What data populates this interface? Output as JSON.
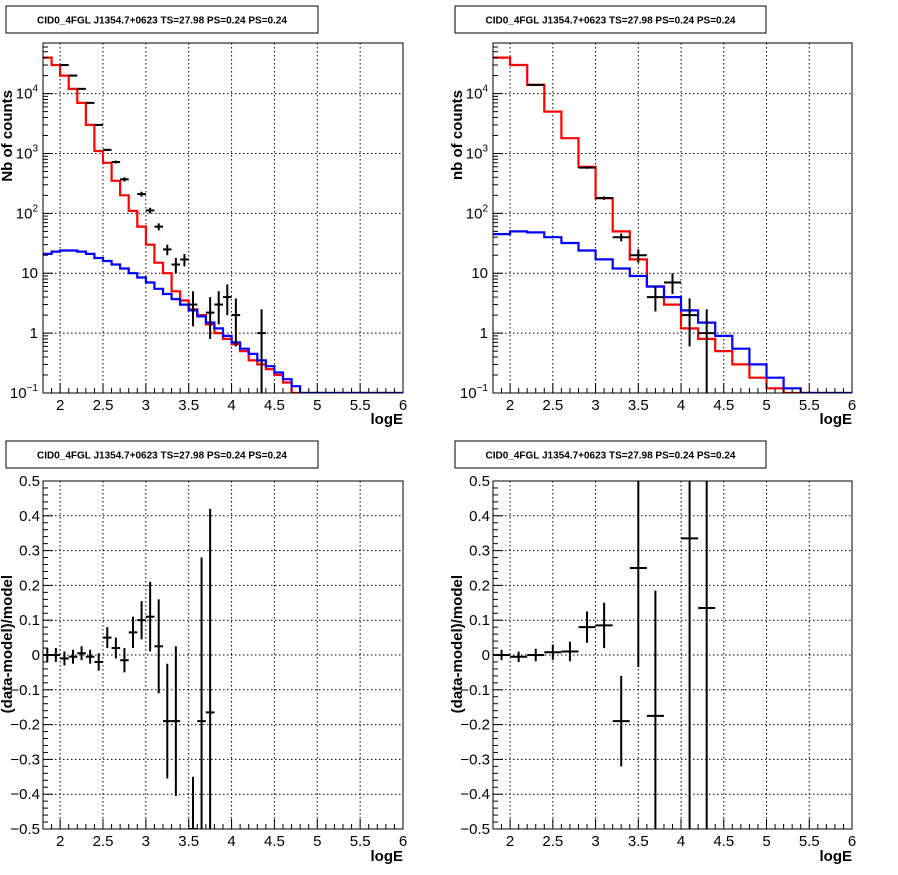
{
  "chart_data": [
    {
      "type": "histogram",
      "title": "CID0_4FGL J1354.7+0623 TS=27.98 PS=0.24 PS=0.24",
      "xlabel": "logE",
      "ylabel": "Nb of counts",
      "xlim": [
        1.8,
        6
      ],
      "ylim": [
        0.1,
        70000
      ],
      "yscale": "log",
      "xticks": [
        "2",
        "2.5",
        "3",
        "3.5",
        "4",
        "4.5",
        "5",
        "5.5",
        "6"
      ],
      "yticks": [
        {
          "v": 0.1,
          "base": "10",
          "exp": "−1"
        },
        {
          "v": 1,
          "label": "1"
        },
        {
          "v": 10,
          "label": "10"
        },
        {
          "v": 100,
          "base": "10",
          "exp": "2"
        },
        {
          "v": 1000,
          "base": "10",
          "exp": "3"
        },
        {
          "v": 10000,
          "base": "10",
          "exp": "4"
        }
      ],
      "grid": true,
      "bin_width": 0.1,
      "bin_start": 1.8,
      "series": [
        {
          "color": "#ff0000",
          "values": [
            40000,
            30000,
            20000,
            12000,
            7000,
            3000,
            1100,
            700,
            350,
            200,
            110,
            60,
            30,
            15,
            10,
            5,
            3.5,
            2.5,
            2,
            1.4,
            1,
            0.8,
            0.65,
            0.5,
            0.35,
            0.3,
            0.25,
            0.2,
            0.15,
            0.1,
            0.1,
            0.1,
            0.1,
            0.1,
            0.1,
            0.1,
            0.1,
            0.1,
            0.1,
            0.1,
            0.1,
            0.1
          ]
        },
        {
          "color": "#0000ff",
          "values": [
            21,
            23,
            24,
            24,
            23,
            21,
            18,
            16,
            14,
            12,
            10,
            8.5,
            7,
            5.5,
            4.5,
            3.7,
            3,
            2.4,
            1.9,
            1.5,
            1.2,
            0.9,
            0.7,
            0.55,
            0.45,
            0.35,
            0.28,
            0.22,
            0.17,
            0.13,
            0.1,
            0.1,
            0.1,
            0.1,
            0.1,
            0.1,
            0.1,
            0.1,
            0.1,
            0.1,
            0.1,
            0.1
          ]
        }
      ],
      "data_points": [
        {
          "x": 2.05,
          "y": 30000,
          "ylo": 29500,
          "yhi": 30500
        },
        {
          "x": 2.15,
          "y": 20000,
          "ylo": 19500,
          "yhi": 20500
        },
        {
          "x": 2.25,
          "y": 12000,
          "ylo": 11700,
          "yhi": 12300
        },
        {
          "x": 2.35,
          "y": 7000,
          "ylo": 6800,
          "yhi": 7200
        },
        {
          "x": 2.45,
          "y": 3000,
          "ylo": 2900,
          "yhi": 3100
        },
        {
          "x": 2.55,
          "y": 1150,
          "ylo": 1100,
          "yhi": 1200
        },
        {
          "x": 2.65,
          "y": 720,
          "ylo": 680,
          "yhi": 760
        },
        {
          "x": 2.75,
          "y": 370,
          "ylo": 340,
          "yhi": 400
        },
        {
          "x": 2.95,
          "y": 210,
          "ylo": 190,
          "yhi": 230
        },
        {
          "x": 3.05,
          "y": 112,
          "ylo": 100,
          "yhi": 124
        },
        {
          "x": 3.15,
          "y": 60,
          "ylo": 52,
          "yhi": 68
        },
        {
          "x": 3.25,
          "y": 25,
          "ylo": 20,
          "yhi": 30
        },
        {
          "x": 3.35,
          "y": 14,
          "ylo": 10,
          "yhi": 18
        },
        {
          "x": 3.45,
          "y": 17,
          "ylo": 13,
          "yhi": 21
        },
        {
          "x": 3.55,
          "y": 3,
          "ylo": 1.3,
          "yhi": 5
        },
        {
          "x": 3.75,
          "y": 2.2,
          "ylo": 0.8,
          "yhi": 4
        },
        {
          "x": 3.85,
          "y": 3,
          "ylo": 1.4,
          "yhi": 5
        },
        {
          "x": 3.95,
          "y": 4,
          "ylo": 2,
          "yhi": 6.5
        },
        {
          "x": 4.05,
          "y": 2,
          "ylo": 0.6,
          "yhi": 3.8
        },
        {
          "x": 4.35,
          "y": 1,
          "ylo": 0.1,
          "yhi": 2.5
        }
      ]
    },
    {
      "type": "histogram",
      "title": "CID0_4FGL J1354.7+0623 TS=27.98 PS=0.24 PS=0.24",
      "xlabel": "logE",
      "ylabel": "nb of counts",
      "xlim": [
        1.8,
        6
      ],
      "ylim": [
        0.1,
        70000
      ],
      "yscale": "log",
      "xticks": [
        "2",
        "2.5",
        "3",
        "3.5",
        "4",
        "4.5",
        "5",
        "5.5",
        "6"
      ],
      "yticks": [
        {
          "v": 0.1,
          "base": "10",
          "exp": "−1"
        },
        {
          "v": 1,
          "label": "1"
        },
        {
          "v": 10,
          "label": "10"
        },
        {
          "v": 100,
          "base": "10",
          "exp": "2"
        },
        {
          "v": 1000,
          "base": "10",
          "exp": "3"
        },
        {
          "v": 10000,
          "base": "10",
          "exp": "4"
        }
      ],
      "grid": true,
      "bin_width": 0.2,
      "bin_start": 1.8,
      "series": [
        {
          "color": "#ff0000",
          "values": [
            40000,
            30000,
            14000,
            5000,
            1800,
            600,
            180,
            50,
            17,
            6,
            3,
            1.2,
            0.8,
            0.5,
            0.3,
            0.18,
            0.12,
            0.1,
            0.1,
            0.1,
            0.1
          ]
        },
        {
          "color": "#0000ff",
          "values": [
            45,
            50,
            48,
            40,
            32,
            24,
            17,
            12,
            9,
            6,
            4,
            2.4,
            1.5,
            0.9,
            0.55,
            0.3,
            0.18,
            0.12,
            0.1,
            0.1,
            0.1
          ]
        }
      ],
      "data_points": [
        {
          "x": 2.3,
          "y": 14000,
          "ylo": 13700,
          "yhi": 14300
        },
        {
          "x": 2.9,
          "y": 580,
          "ylo": 555,
          "yhi": 605
        },
        {
          "x": 3.1,
          "y": 180,
          "ylo": 168,
          "yhi": 192
        },
        {
          "x": 3.3,
          "y": 40,
          "ylo": 34,
          "yhi": 46
        },
        {
          "x": 3.5,
          "y": 20,
          "ylo": 15,
          "yhi": 25
        },
        {
          "x": 3.7,
          "y": 4,
          "ylo": 2.3,
          "yhi": 6
        },
        {
          "x": 3.9,
          "y": 7,
          "ylo": 4.5,
          "yhi": 10
        },
        {
          "x": 4.1,
          "y": 2,
          "ylo": 0.6,
          "yhi": 3.8
        },
        {
          "x": 4.3,
          "y": 1,
          "ylo": 0.1,
          "yhi": 2.5
        }
      ]
    },
    {
      "type": "scatter",
      "title": "CID0_4FGL J1354.7+0623 TS=27.98 PS=0.24 PS=0.24",
      "xlabel": "logE",
      "ylabel": "(data-model)/model",
      "xlim": [
        1.8,
        6
      ],
      "ylim": [
        -0.5,
        0.5
      ],
      "xticks": [
        "2",
        "2.5",
        "3",
        "3.5",
        "4",
        "4.5",
        "5",
        "5.5",
        "6"
      ],
      "yticks": [
        "−0.5",
        "−0.4",
        "−0.3",
        "−0.2",
        "−0.1",
        "0",
        "0.1",
        "0.2",
        "0.3",
        "0.4",
        "0.5"
      ],
      "grid": true,
      "bin_width": 0.1,
      "points": [
        {
          "x": 1.85,
          "y": 0.0,
          "err": 0.02
        },
        {
          "x": 1.95,
          "y": 0.0,
          "err": 0.02
        },
        {
          "x": 2.05,
          "y": -0.01,
          "err": 0.02
        },
        {
          "x": 2.15,
          "y": -0.005,
          "err": 0.02
        },
        {
          "x": 2.25,
          "y": 0.005,
          "err": 0.02
        },
        {
          "x": 2.35,
          "y": -0.005,
          "err": 0.02
        },
        {
          "x": 2.45,
          "y": -0.02,
          "err": 0.025
        },
        {
          "x": 2.55,
          "y": 0.05,
          "err": 0.03
        },
        {
          "x": 2.65,
          "y": 0.02,
          "err": 0.03
        },
        {
          "x": 2.75,
          "y": -0.015,
          "err": 0.035
        },
        {
          "x": 2.85,
          "y": 0.065,
          "err": 0.045
        },
        {
          "x": 2.95,
          "y": 0.1,
          "err": 0.055
        },
        {
          "x": 3.05,
          "y": 0.11,
          "err": 0.1
        },
        {
          "x": 3.15,
          "y": 0.025,
          "err": 0.135
        },
        {
          "x": 3.25,
          "y": -0.19,
          "err": 0.165
        },
        {
          "x": 3.35,
          "y": -0.19,
          "err": 0.215
        },
        {
          "x": 3.55,
          "y": -0.5,
          "err": 0.15
        },
        {
          "x": 3.65,
          "y": -0.19,
          "err": 0.47
        },
        {
          "x": 3.75,
          "y": -0.165,
          "err": 0.585
        }
      ]
    },
    {
      "type": "scatter",
      "title": "CID0_4FGL J1354.7+0623 TS=27.98 PS=0.24 PS=0.24",
      "xlabel": "logE",
      "ylabel": "(data-model)/model",
      "xlim": [
        1.8,
        6
      ],
      "ylim": [
        -0.5,
        0.5
      ],
      "xticks": [
        "2",
        "2.5",
        "3",
        "3.5",
        "4",
        "4.5",
        "5",
        "5.5",
        "6"
      ],
      "yticks": [
        "−0.5",
        "−0.4",
        "−0.3",
        "−0.2",
        "−0.1",
        "0",
        "0.1",
        "0.2",
        "0.3",
        "0.4",
        "0.5"
      ],
      "grid": true,
      "bin_width": 0.2,
      "points": [
        {
          "x": 1.9,
          "y": 0.0,
          "err": 0.015
        },
        {
          "x": 2.1,
          "y": -0.005,
          "err": 0.015
        },
        {
          "x": 2.3,
          "y": 0.0,
          "err": 0.018
        },
        {
          "x": 2.5,
          "y": 0.008,
          "err": 0.022
        },
        {
          "x": 2.7,
          "y": 0.01,
          "err": 0.028
        },
        {
          "x": 2.9,
          "y": 0.08,
          "err": 0.045
        },
        {
          "x": 3.1,
          "y": 0.085,
          "err": 0.065
        },
        {
          "x": 3.3,
          "y": -0.19,
          "err": 0.13
        },
        {
          "x": 3.5,
          "y": 0.25,
          "err": 0.285
        },
        {
          "x": 3.7,
          "y": -0.175,
          "err": 0.36
        },
        {
          "x": 4.1,
          "y": 0.335,
          "err": 0.9
        },
        {
          "x": 4.3,
          "y": 0.135,
          "err": 0.9
        }
      ]
    }
  ]
}
